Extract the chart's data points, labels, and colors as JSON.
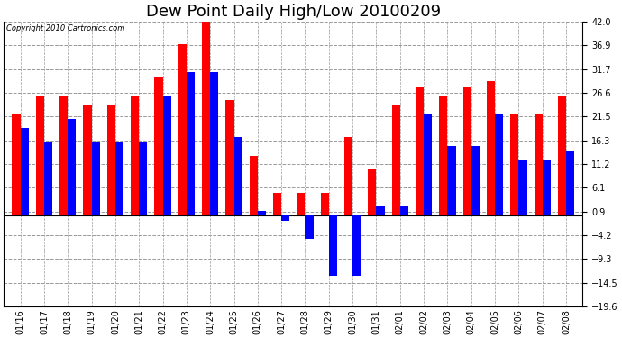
{
  "title": "Dew Point Daily High/Low 20100209",
  "copyright": "Copyright 2010 Cartronics.com",
  "dates": [
    "01/16",
    "01/17",
    "01/18",
    "01/19",
    "01/20",
    "01/21",
    "01/22",
    "01/23",
    "01/24",
    "01/25",
    "01/26",
    "01/27",
    "01/28",
    "01/29",
    "01/30",
    "01/31",
    "02/01",
    "02/02",
    "02/03",
    "02/04",
    "02/05",
    "02/06",
    "02/07",
    "02/08"
  ],
  "highs": [
    22,
    26,
    26,
    24,
    24,
    26,
    30,
    37,
    42,
    25,
    13,
    5,
    5,
    5,
    17,
    10,
    24,
    28,
    26,
    28,
    29,
    22,
    22,
    26
  ],
  "lows": [
    19,
    16,
    21,
    16,
    16,
    16,
    26,
    31,
    31,
    17,
    1,
    -1,
    -5,
    -13,
    -13,
    2,
    2,
    22,
    15,
    15,
    22,
    12,
    12,
    14
  ],
  "bar_width": 0.35,
  "high_color": "#ff0000",
  "low_color": "#0000ff",
  "background_color": "#ffffff",
  "plot_bg_color": "#ffffff",
  "grid_color": "#999999",
  "ylim": [
    -19.6,
    42.0
  ],
  "yticks": [
    -19.6,
    -14.5,
    -9.3,
    -4.2,
    0.9,
    6.1,
    11.2,
    16.3,
    21.5,
    26.6,
    31.7,
    36.9,
    42.0
  ],
  "title_fontsize": 13,
  "figwidth": 6.9,
  "figheight": 3.75,
  "dpi": 100
}
